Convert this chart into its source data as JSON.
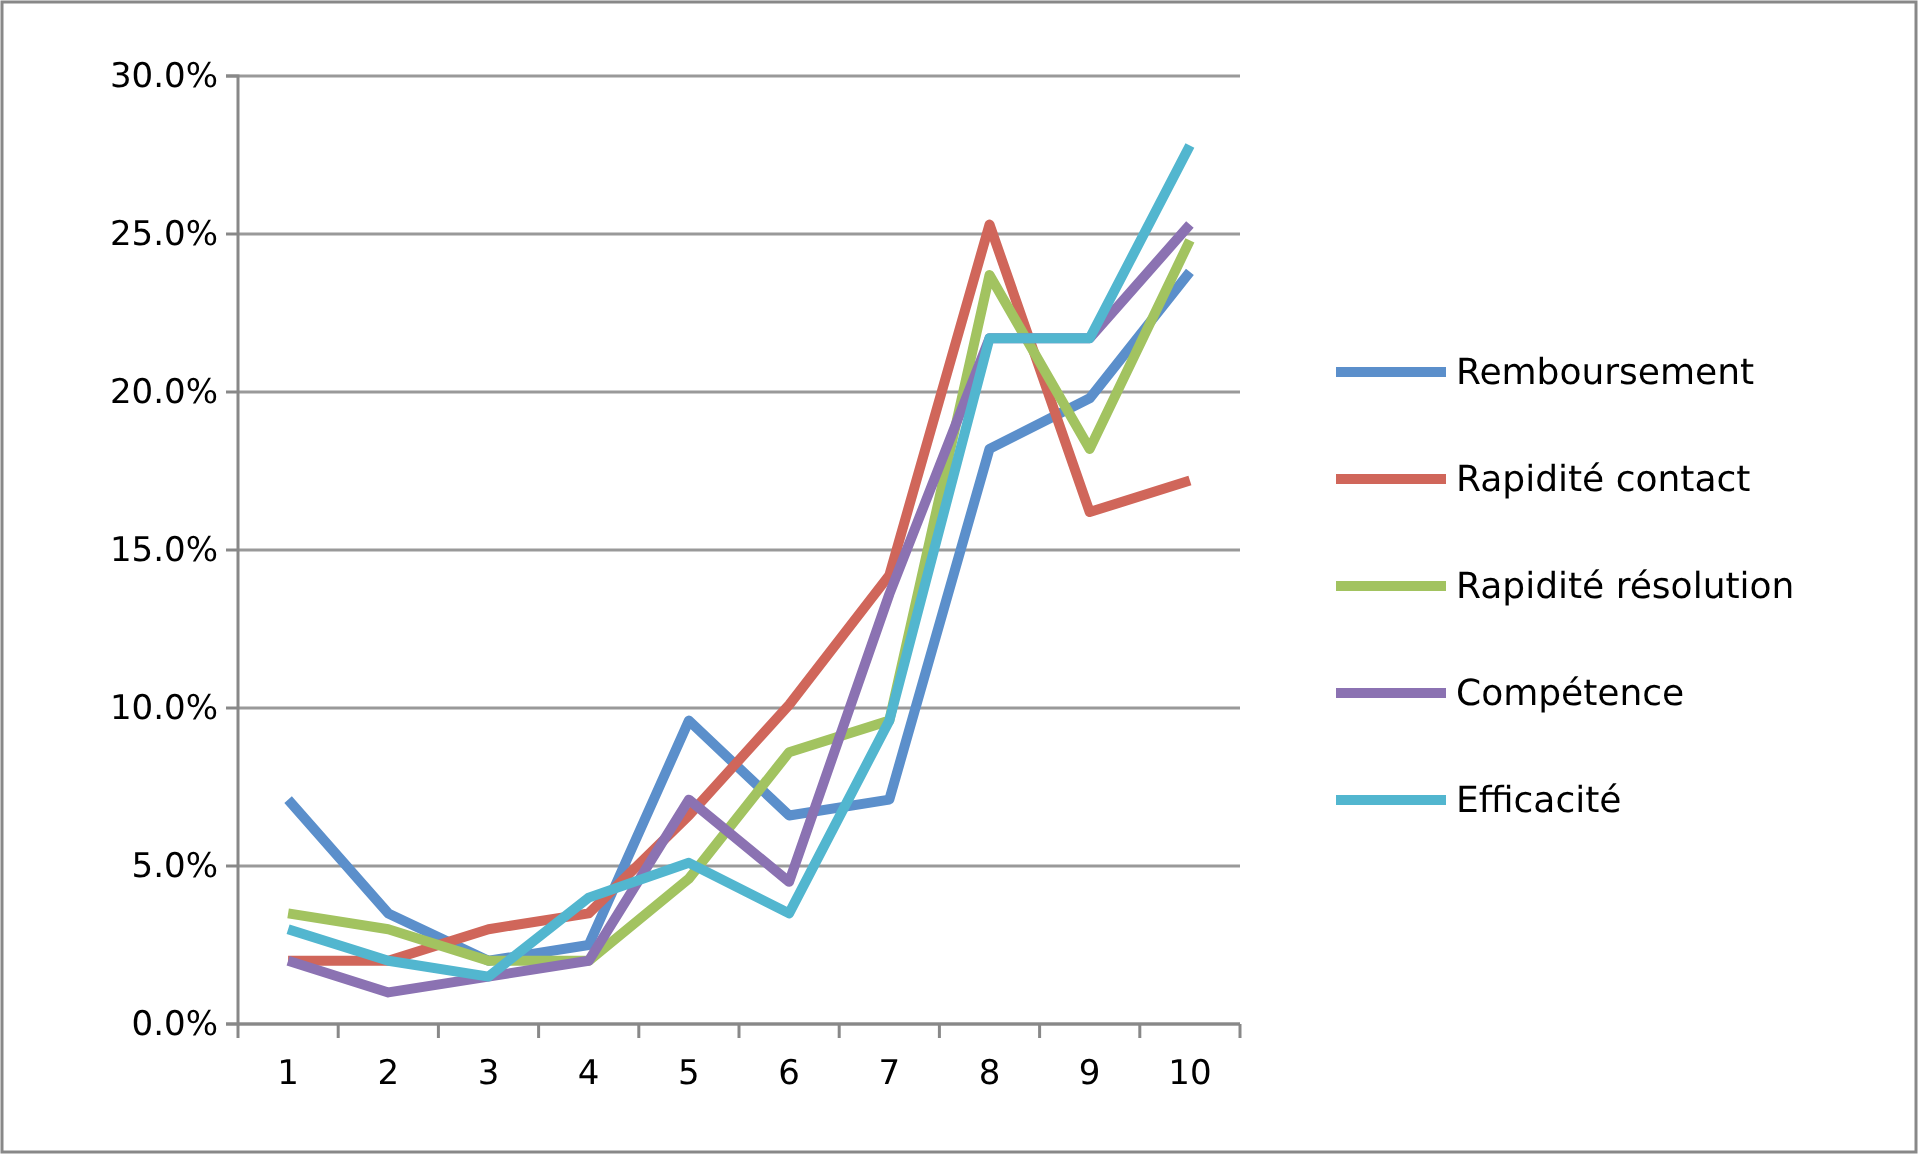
{
  "chart_data": {
    "type": "line",
    "categories": [
      "1",
      "2",
      "3",
      "4",
      "5",
      "6",
      "7",
      "8",
      "9",
      "10"
    ],
    "series": [
      {
        "name": "Remboursement",
        "color": "#5b8fcb",
        "values": [
          7.1,
          3.5,
          2.0,
          2.5,
          9.6,
          6.6,
          7.1,
          18.2,
          19.8,
          23.8
        ]
      },
      {
        "name": "Rapidité contact",
        "color": "#d0665a",
        "values": [
          2.0,
          2.0,
          3.0,
          3.5,
          6.6,
          10.1,
          14.2,
          25.3,
          16.2,
          17.2
        ]
      },
      {
        "name": "Rapidité résolution",
        "color": "#a2c360",
        "values": [
          3.5,
          3.0,
          2.0,
          2.0,
          4.6,
          8.6,
          9.6,
          23.7,
          18.2,
          24.8
        ]
      },
      {
        "name": "Compétence",
        "color": "#8b72b2",
        "values": [
          2.0,
          1.0,
          1.5,
          2.0,
          7.1,
          4.5,
          13.6,
          21.7,
          21.7,
          25.3
        ]
      },
      {
        "name": "Efficacité",
        "color": "#52b6cf",
        "values": [
          3.0,
          2.0,
          1.5,
          4.0,
          5.1,
          3.5,
          9.6,
          21.7,
          21.7,
          27.8
        ]
      }
    ],
    "ylim": [
      0,
      30
    ],
    "yticks": [
      {
        "value": 0,
        "label": "0.0%"
      },
      {
        "value": 5,
        "label": "5.0%"
      },
      {
        "value": 10,
        "label": "10.0%"
      },
      {
        "value": 15,
        "label": "15.0%"
      },
      {
        "value": 20,
        "label": "20.0%"
      },
      {
        "value": 25,
        "label": "25.0%"
      },
      {
        "value": 30,
        "label": "30.0%"
      }
    ],
    "grid": "y",
    "legend": "right",
    "marker": "none",
    "line_style": "solid"
  }
}
